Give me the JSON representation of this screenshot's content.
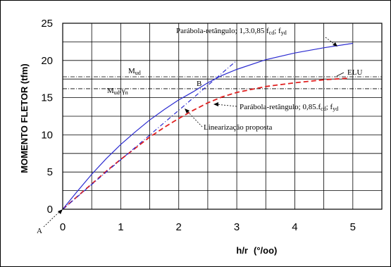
{
  "chart_data": {
    "type": "line",
    "xlabel_main": "h/r",
    "xlabel_unit": "(°/oo)",
    "ylabel": "MOMENTO FLETOR (tfm)",
    "xlim": [
      0,
      5.5
    ],
    "ylim": [
      0,
      25
    ],
    "x_ticks": [
      "0",
      "1",
      "2",
      "3",
      "4",
      "5"
    ],
    "y_ticks": [
      "0",
      "5",
      "10",
      "15",
      "20",
      "25"
    ],
    "grid": true,
    "series": [
      {
        "name": "Parábola-retângulo; 1,3.0,85 fcd; fyd",
        "color": "#2b2bd0",
        "dash": "solid",
        "x": [
          0,
          0.25,
          0.5,
          0.75,
          1.0,
          1.25,
          1.5,
          1.75,
          2.0,
          2.25,
          2.5,
          2.75,
          3.0,
          3.5,
          4.0,
          4.5,
          5.0
        ],
        "y": [
          0,
          2.4,
          4.7,
          6.8,
          8.7,
          10.4,
          12.0,
          13.4,
          14.7,
          15.8,
          17.0,
          18.0,
          18.8,
          20.1,
          21.0,
          21.7,
          22.3
        ]
      },
      {
        "name": "Parábola-retângulo; 0,85.fcd; fyd",
        "color": "#e02020",
        "dash": "dashed",
        "x": [
          0,
          0.25,
          0.5,
          0.75,
          1.0,
          1.25,
          1.5,
          1.75,
          2.0,
          2.25,
          2.5,
          2.75,
          3.0,
          3.5,
          4.0,
          4.5,
          4.9
        ],
        "y": [
          0,
          1.7,
          3.4,
          5.1,
          6.7,
          8.2,
          9.7,
          11.0,
          12.2,
          13.3,
          14.3,
          15.1,
          15.7,
          16.5,
          17.0,
          17.4,
          17.6
        ]
      },
      {
        "name": "Linearização proposta",
        "color": "#2b2bd0",
        "dash": "dashdot",
        "x": [
          0,
          2.15,
          3.0
        ],
        "y": [
          0,
          14.3,
          20.0
        ]
      }
    ],
    "reference_lines": [
      {
        "label": "Mud",
        "y": 17.8
      },
      {
        "label": "Mud/γn",
        "y": 16.2
      }
    ],
    "annotations": {
      "curve_top": {
        "main": "Parábola-retângulo; 1,3.0,85 f",
        "sub1": "cd",
        "mid": "; f",
        "sub2": "yd"
      },
      "curve_bottom": {
        "main": "Parábola-retângulo; 0,85.f",
        "sub1": "cd",
        "mid": "; f",
        "sub2": "yd"
      },
      "linear": "Linearização proposta",
      "mud": {
        "main": "M",
        "sub": "ud"
      },
      "mud_gamma": {
        "main": "M",
        "sub": "ud",
        "slash": "/γ",
        "sub2": "n"
      },
      "elu": "ELU",
      "point_b": "B",
      "point_a": "A"
    }
  }
}
